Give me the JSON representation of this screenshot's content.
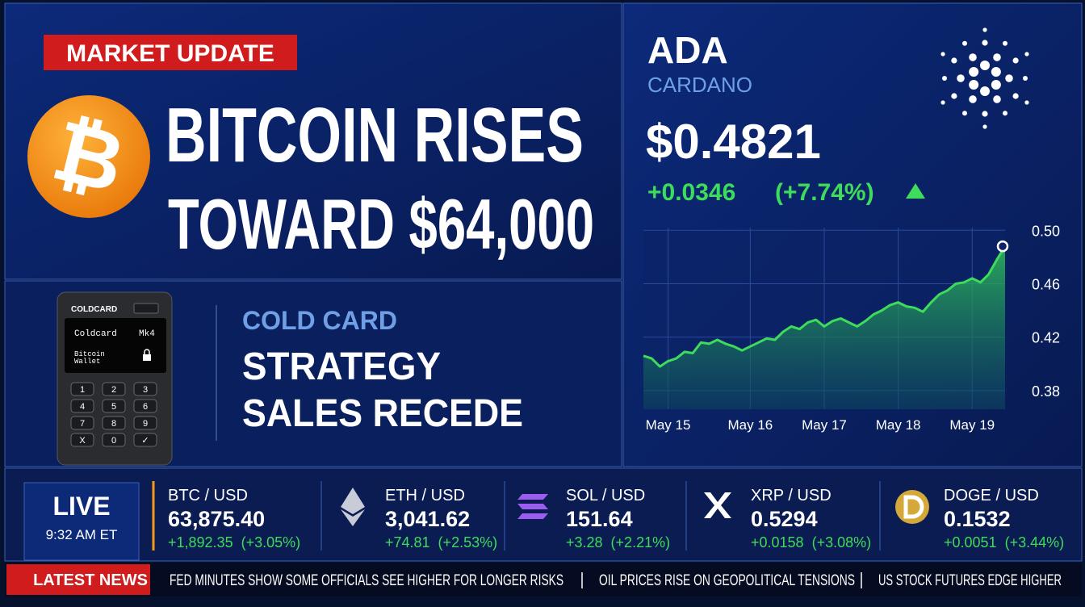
{
  "headline": {
    "badge": "MARKET UPDATE",
    "icon": "₿",
    "line1": "BITCOIN RISES",
    "line2": "TOWARD $64,000"
  },
  "story": {
    "label": "COLD CARD",
    "line1": "STRATEGY",
    "line2": "SALES RECEDE"
  },
  "device": {
    "brand": "COLDCARD",
    "screen_title": "Coldcard",
    "model": "Mk4",
    "screen_line1": "Bitcoin",
    "screen_line2": "Wallet",
    "keys": [
      "1",
      "2",
      "3",
      "4",
      "5",
      "6",
      "7",
      "8",
      "9",
      "X",
      "0",
      "✓"
    ]
  },
  "quote": {
    "symbol": "ADA",
    "name": "CARDANO",
    "price": "$0.4821",
    "change": "+0.0346",
    "change_pct": "(+7.74%)"
  },
  "chart_data": {
    "type": "line",
    "color": "#3ddc5a",
    "grid": true,
    "categories": [
      null,
      null,
      null,
      "May 15",
      null,
      null,
      null,
      null,
      null,
      null,
      null,
      null,
      null,
      "May 16",
      null,
      null,
      null,
      null,
      null,
      null,
      null,
      null,
      "May 17",
      null,
      null,
      null,
      null,
      null,
      null,
      null,
      null,
      "May 18",
      null,
      null,
      null,
      null,
      null,
      null,
      null,
      null,
      "May 19",
      null,
      null,
      null,
      null
    ],
    "values": [
      0.406,
      0.404,
      0.398,
      0.402,
      0.404,
      0.409,
      0.408,
      0.416,
      0.415,
      0.418,
      0.415,
      0.413,
      0.41,
      0.413,
      0.416,
      0.419,
      0.418,
      0.424,
      0.428,
      0.426,
      0.431,
      0.433,
      0.428,
      0.432,
      0.434,
      0.431,
      0.428,
      0.432,
      0.437,
      0.44,
      0.444,
      0.446,
      0.443,
      0.442,
      0.439,
      0.446,
      0.452,
      0.455,
      0.46,
      0.461,
      0.464,
      0.461,
      0.467,
      0.478,
      0.488
    ],
    "ylim": [
      0.366,
      0.502
    ],
    "yticks": [
      {
        "value": 0.5,
        "label": "0.50"
      },
      0.46,
      0.42,
      0.38
    ]
  },
  "live": {
    "label": "LIVE",
    "time": "9:32 AM ET"
  },
  "tickers": [
    {
      "pair": "BTC / USD",
      "price": "63,875.40",
      "change": "+1,892.35  (+3.05%)"
    },
    {
      "pair": "ETH / USD",
      "price": "3,041.62",
      "change": "+74.81  (+2.53%)"
    },
    {
      "pair": "SOL / USD",
      "price": "151.64",
      "change": "+3.28  (+2.21%)"
    },
    {
      "pair": "XRP / USD",
      "price": "0.5294",
      "change": "+0.0158  (+3.08%)"
    },
    {
      "pair": "DOGE / USD",
      "price": "0.1532",
      "change": "+0.0051  (+3.44%)"
    }
  ],
  "news": {
    "label": "LATEST NEWS",
    "items": [
      "FED MINUTES SHOW SOME OFFICIALS SEE HIGHER FOR LONGER RISKS",
      "OIL PRICES RISE ON GEOPOLITICAL TENSIONS",
      "US STOCK FUTURES EDGE HIGHER"
    ]
  }
}
